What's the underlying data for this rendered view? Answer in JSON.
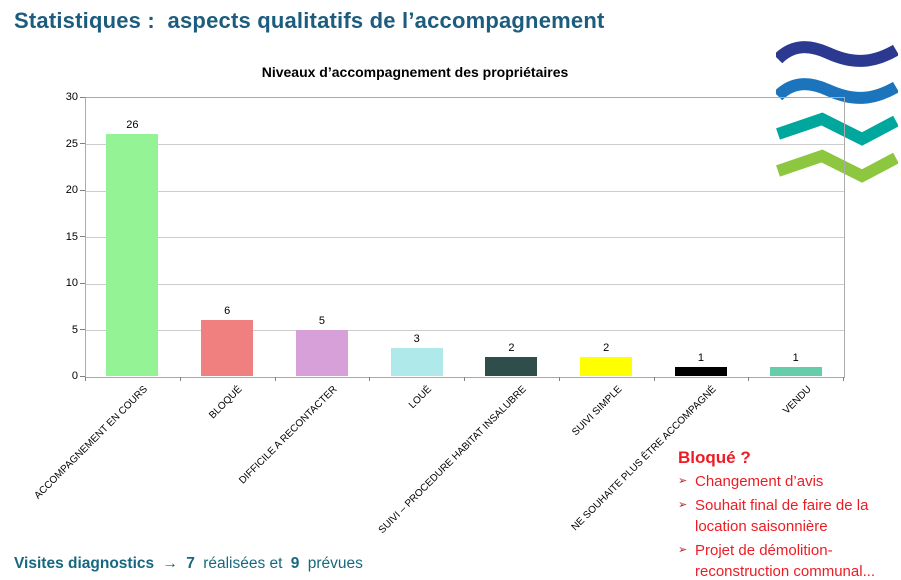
{
  "page": {
    "title": "Statistiques :  aspects qualitatifs de l’accompagnement",
    "title_color": "#1C5C7E"
  },
  "chart_data": {
    "type": "bar",
    "title": "Niveaux d’accompagnement des propriétaires",
    "categories": [
      "ACCOMPAGNEMENT EN COURS",
      "BLOQUÉ",
      "DIFFICILE A RECONTACTER",
      "LOUÉ",
      "SUIVI – PROCEDURE HABITAT INSALUBRE",
      "SUIVI SIMPLE",
      "NE SOUHAITE PLUS ÊTRE ACCOMPAGNÉ",
      "VENDU"
    ],
    "values": [
      26,
      6,
      5,
      3,
      2,
      2,
      1,
      1
    ],
    "bar_colors": [
      "#94F394",
      "#F08080",
      "#D8A0D8",
      "#AFE9E9",
      "#2F4D4A",
      "#FFFF00",
      "#000000",
      "#66CDAA"
    ],
    "ylim": [
      0,
      30
    ],
    "ytick_step": 5,
    "grid": true,
    "legend": "none",
    "gridline_color": "#CDCDCD",
    "xlabel": "",
    "ylabel": ""
  },
  "bloque_note": {
    "heading": "Bloqué ?",
    "color": "#ED1C24",
    "bullet": "➢",
    "items": [
      "Changement d’avis",
      "Souhait final de faire de la location saisonnière",
      "Projet de démolition-reconstruction communal..."
    ]
  },
  "footer": {
    "prefix": "Visites diagnostics",
    "arrow": "→",
    "count_done": "7",
    "middle": "réalisées et",
    "count_planned": "9",
    "suffix": "prévues",
    "color": "#17687F"
  },
  "logo": {
    "name": "waves-logo",
    "colors": [
      "#2B3990",
      "#1C75BC",
      "#00A79D",
      "#8DC63F"
    ]
  }
}
